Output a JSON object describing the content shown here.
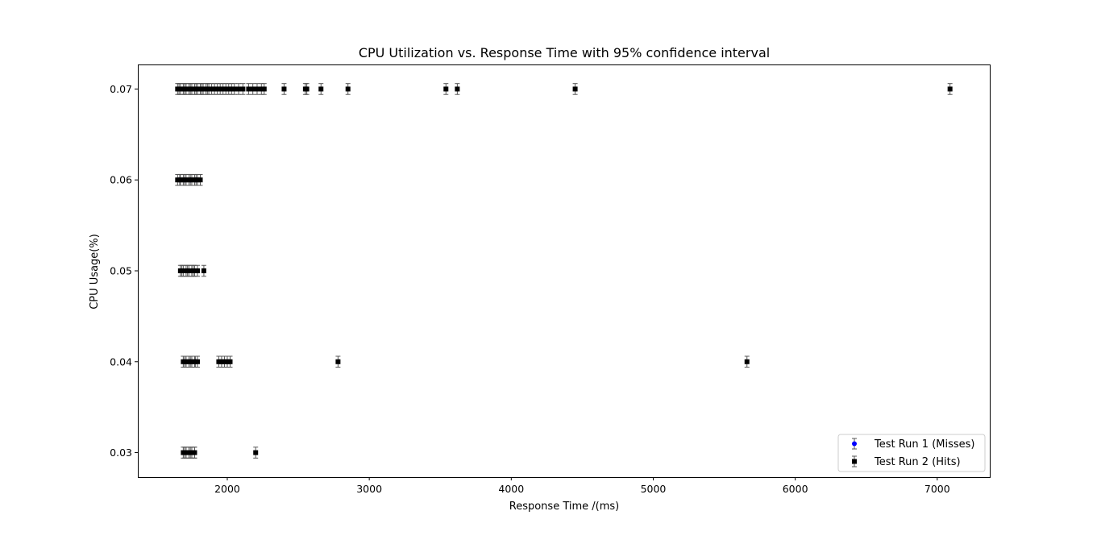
{
  "chart_data": {
    "type": "scatter",
    "title": "CPU Utilization vs. Response Time with 95% confidence interval",
    "xlabel": "Response Time /(ms)",
    "ylabel": "CPU Usage(%)",
    "xlim": [
      1370,
      7370
    ],
    "ylim": [
      0.0273,
      0.0727
    ],
    "xticks": [
      2000,
      3000,
      4000,
      5000,
      6000,
      7000
    ],
    "xtick_labels": [
      "2000",
      "3000",
      "4000",
      "5000",
      "6000",
      "7000"
    ],
    "yticks": [
      0.03,
      0.04,
      0.05,
      0.06,
      0.07
    ],
    "ytick_labels": [
      "0.03",
      "0.04",
      "0.05",
      "0.06",
      "0.07"
    ],
    "grid": false,
    "legend_position": "lower-right",
    "error_bar_halfwidth": 0.0006,
    "series": [
      {
        "name": "Test Run 1 (Misses)",
        "marker": "circle",
        "color": "#0000ff",
        "points": [
          [
            1660,
            0.07
          ],
          [
            1700,
            0.07
          ],
          [
            1740,
            0.07
          ],
          [
            1780,
            0.07
          ],
          [
            1820,
            0.07
          ],
          [
            1860,
            0.07
          ],
          [
            1665,
            0.06
          ],
          [
            1700,
            0.06
          ],
          [
            1740,
            0.06
          ],
          [
            1780,
            0.06
          ],
          [
            1680,
            0.05
          ],
          [
            1720,
            0.05
          ],
          [
            1760,
            0.05
          ],
          [
            1700,
            0.04
          ],
          [
            1740,
            0.04
          ],
          [
            1775,
            0.04
          ],
          [
            1700,
            0.03
          ],
          [
            1740,
            0.03
          ],
          [
            1770,
            0.03
          ]
        ]
      },
      {
        "name": "Test Run 2 (Hits)",
        "marker": "square",
        "color": "#000000",
        "points": [
          [
            1650,
            0.07
          ],
          [
            1670,
            0.07
          ],
          [
            1690,
            0.07
          ],
          [
            1710,
            0.07
          ],
          [
            1730,
            0.07
          ],
          [
            1750,
            0.07
          ],
          [
            1770,
            0.07
          ],
          [
            1790,
            0.07
          ],
          [
            1810,
            0.07
          ],
          [
            1830,
            0.07
          ],
          [
            1850,
            0.07
          ],
          [
            1870,
            0.07
          ],
          [
            1890,
            0.07
          ],
          [
            1910,
            0.07
          ],
          [
            1930,
            0.07
          ],
          [
            1950,
            0.07
          ],
          [
            1970,
            0.07
          ],
          [
            1990,
            0.07
          ],
          [
            2010,
            0.07
          ],
          [
            2030,
            0.07
          ],
          [
            2050,
            0.07
          ],
          [
            2080,
            0.07
          ],
          [
            2110,
            0.07
          ],
          [
            2150,
            0.07
          ],
          [
            2180,
            0.07
          ],
          [
            2210,
            0.07
          ],
          [
            2240,
            0.07
          ],
          [
            2260,
            0.07
          ],
          [
            2400,
            0.07
          ],
          [
            2550,
            0.07
          ],
          [
            2560,
            0.07
          ],
          [
            2660,
            0.07
          ],
          [
            2850,
            0.07
          ],
          [
            3540,
            0.07
          ],
          [
            3620,
            0.07
          ],
          [
            4450,
            0.07
          ],
          [
            7090,
            0.07
          ],
          [
            1650,
            0.06
          ],
          [
            1670,
            0.06
          ],
          [
            1690,
            0.06
          ],
          [
            1710,
            0.06
          ],
          [
            1730,
            0.06
          ],
          [
            1750,
            0.06
          ],
          [
            1770,
            0.06
          ],
          [
            1790,
            0.06
          ],
          [
            1810,
            0.06
          ],
          [
            1670,
            0.05
          ],
          [
            1690,
            0.05
          ],
          [
            1710,
            0.05
          ],
          [
            1730,
            0.05
          ],
          [
            1750,
            0.05
          ],
          [
            1770,
            0.05
          ],
          [
            1790,
            0.05
          ],
          [
            1835,
            0.05
          ],
          [
            1690,
            0.04
          ],
          [
            1710,
            0.04
          ],
          [
            1730,
            0.04
          ],
          [
            1750,
            0.04
          ],
          [
            1770,
            0.04
          ],
          [
            1790,
            0.04
          ],
          [
            1940,
            0.04
          ],
          [
            1960,
            0.04
          ],
          [
            1980,
            0.04
          ],
          [
            2000,
            0.04
          ],
          [
            2020,
            0.04
          ],
          [
            2780,
            0.04
          ],
          [
            5660,
            0.04
          ],
          [
            1690,
            0.03
          ],
          [
            1710,
            0.03
          ],
          [
            1730,
            0.03
          ],
          [
            1750,
            0.03
          ],
          [
            1770,
            0.03
          ],
          [
            2200,
            0.03
          ]
        ]
      }
    ]
  }
}
